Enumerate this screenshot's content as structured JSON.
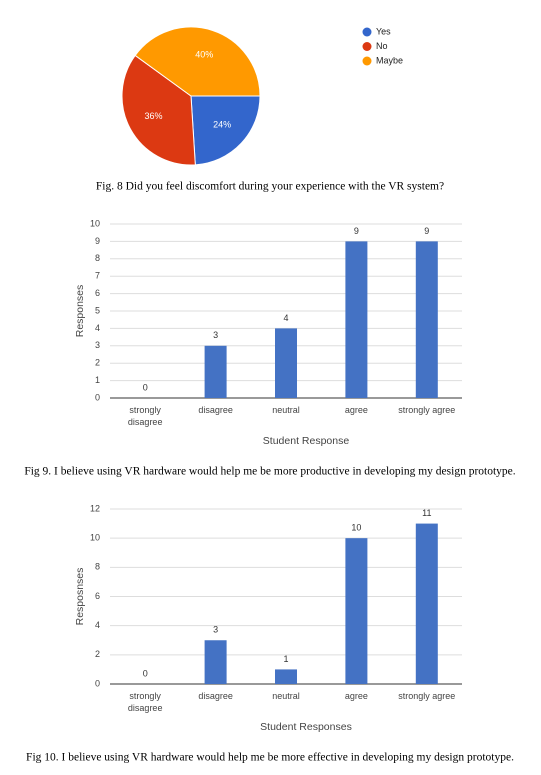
{
  "chart_data": [
    {
      "type": "pie",
      "caption": "Fig. 8 Did you feel discomfort during your experience with the VR system?",
      "categories": [
        "Yes",
        "No",
        "Maybe"
      ],
      "values": [
        24,
        36,
        40
      ],
      "value_labels": [
        "24%",
        "36%",
        "40%"
      ],
      "colors": [
        "#3366cc",
        "#dc3912",
        "#ff9900"
      ],
      "legend": "right"
    },
    {
      "type": "bar",
      "caption": "Fig 9. I believe using VR hardware would help me be more productive in developing my design prototype.",
      "ylabel": "Responses",
      "xlabel": "Student Response",
      "categories": [
        "strongly disagree",
        "disagree",
        "neutral",
        "agree",
        "strongly agree"
      ],
      "values": [
        0,
        3,
        4,
        9,
        9
      ],
      "color": "#4472c4",
      "ylim": [
        0,
        10
      ],
      "yticks": [
        0,
        1,
        2,
        3,
        4,
        5,
        6,
        7,
        8,
        9,
        10
      ],
      "grid": true
    },
    {
      "type": "bar",
      "caption": "Fig 10. I believe using VR hardware would help me be more effective in developing my design prototype.",
      "ylabel": "Resposnses",
      "xlabel": "Student Responses",
      "categories": [
        "strongly disagree",
        "disagree",
        "neutral",
        "agree",
        "strongly agree"
      ],
      "values": [
        0,
        3,
        1,
        10,
        11
      ],
      "color": "#4472c4",
      "ylim": [
        0,
        12
      ],
      "yticks": [
        0,
        2,
        4,
        6,
        8,
        10,
        12
      ],
      "grid": true
    }
  ]
}
